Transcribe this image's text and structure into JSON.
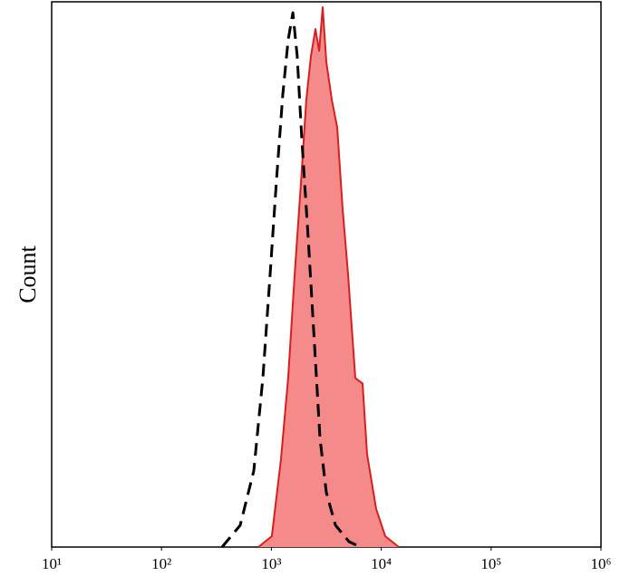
{
  "chart_data": {
    "type": "histogram-overlay",
    "y_label": "Count",
    "xscale": "log",
    "xlim": [
      10,
      1000000
    ],
    "ylim": [
      0,
      100
    ],
    "xticks": [
      {
        "value": 10,
        "label": "10¹"
      },
      {
        "value": 100,
        "label": "10²"
      },
      {
        "value": 1000,
        "label": "10³"
      },
      {
        "value": 10000,
        "label": "10⁴"
      },
      {
        "value": 100000,
        "label": "10⁵"
      },
      {
        "value": 1000000,
        "label": "10⁶"
      }
    ],
    "series": [
      {
        "color": "#d62020",
        "fill": "#f48a8a",
        "style": "solid",
        "x": [
          760,
          1010,
          1220,
          1420,
          1630,
          1860,
          2080,
          2290,
          2520,
          2720,
          2930,
          3160,
          3550,
          3970,
          4450,
          4990,
          5810,
          6760,
          7430,
          8990,
          10870,
          14450
        ],
        "values": [
          0,
          2,
          16,
          31,
          50,
          67,
          82,
          90,
          95,
          91,
          99,
          89,
          82,
          77,
          62,
          50,
          31,
          30,
          17,
          7,
          2,
          0
        ]
      },
      {
        "color": "#000000",
        "style": "dashed",
        "x": [
          356,
          520,
          692,
          836,
          973,
          1110,
          1270,
          1420,
          1570,
          1720,
          1890,
          2160,
          2470,
          2770,
          3160,
          3830,
          5080,
          6500
        ],
        "values": [
          0,
          4,
          14,
          31,
          50,
          67,
          83,
          93,
          98,
          90,
          75,
          57,
          37,
          20,
          10,
          4,
          1,
          0
        ]
      }
    ]
  }
}
